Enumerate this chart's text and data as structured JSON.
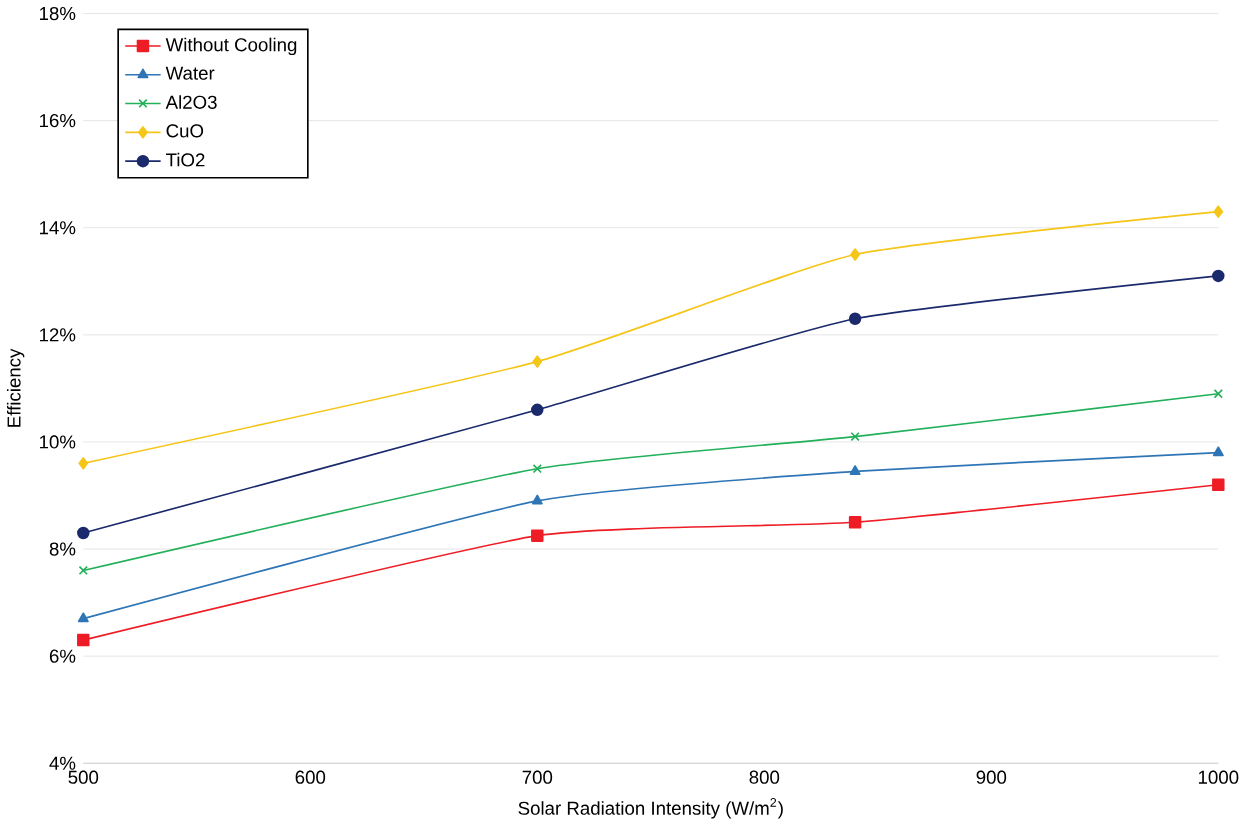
{
  "chart_data": {
    "type": "line",
    "xlabel": "Solar Radiation Intensity (W/m$^{2}$)",
    "ylabel": "Efficiency",
    "x": [
      500,
      700,
      840,
      1000
    ],
    "series": [
      {
        "name": "Without Cooling",
        "color": "#ee1c25",
        "marker": "square",
        "values": [
          6.3,
          8.25,
          8.5,
          9.2
        ]
      },
      {
        "name": "Water",
        "color": "#2e75b6",
        "marker": "triangle",
        "values": [
          6.7,
          8.9,
          9.45,
          9.8
        ]
      },
      {
        "name": "Al2O3",
        "color": "#22b05a",
        "marker": "cross",
        "values": [
          7.6,
          9.5,
          10.1,
          10.9
        ]
      },
      {
        "name": "CuO",
        "color": "#f5c518",
        "marker": "diamond",
        "values": [
          9.6,
          11.5,
          13.5,
          14.3
        ]
      },
      {
        "name": "TiO2",
        "color": "#1a2a6c",
        "marker": "circle",
        "values": [
          8.3,
          10.6,
          12.3,
          13.1
        ]
      }
    ],
    "xlim": [
      500,
      1000
    ],
    "xticks": [
      500,
      600,
      700,
      800,
      900,
      1000
    ],
    "ylim": [
      4,
      18
    ],
    "yticks": [
      {
        "value": 4,
        "label": "4%"
      },
      {
        "value": 6,
        "label": "6%"
      },
      {
        "value": 8,
        "label": "8%"
      },
      {
        "value": 10,
        "label": "10%"
      },
      {
        "value": 12,
        "label": "12%"
      },
      {
        "value": 14,
        "label": "14%"
      },
      {
        "value": 16,
        "label": "16%"
      },
      {
        "value": 18,
        "label": "18%"
      }
    ],
    "grid": "y",
    "legend": "top left",
    "line_style": "solid"
  }
}
